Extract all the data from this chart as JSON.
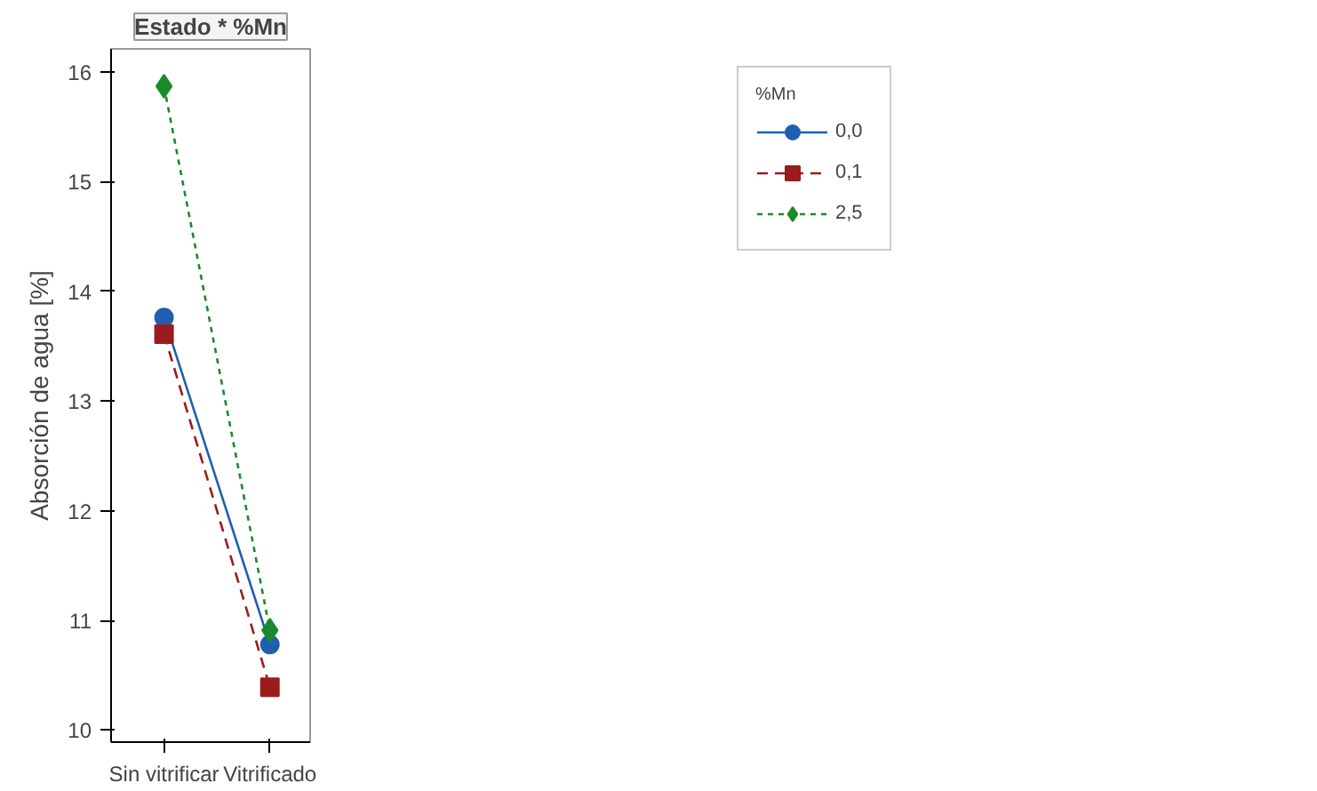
{
  "chart_data": {
    "type": "line",
    "title": "Estado * %Mn",
    "ylabel": "Absorción de agua [%]",
    "categories": [
      "Sin vitrificar",
      "Vitrificado"
    ],
    "ylim": [
      9.89,
      16.21
    ],
    "yticks": [
      10,
      11,
      12,
      13,
      14,
      15,
      16
    ],
    "grid": false,
    "legend": "top right",
    "legend_title": "%Mn",
    "series": [
      {
        "name": "0,0",
        "color": "#1f5fb0",
        "values": [
          13.76,
          10.78
        ],
        "marker": "circle",
        "line_style": "solid"
      },
      {
        "name": "0,1",
        "color": "#9b1c1c",
        "values": [
          13.61,
          10.39
        ],
        "marker": "square",
        "line_style": "dashed"
      },
      {
        "name": "2,5",
        "color": "#1a8a2a",
        "values": [
          15.87,
          10.91
        ],
        "marker": "diamond",
        "line_style": "dotted"
      }
    ]
  }
}
